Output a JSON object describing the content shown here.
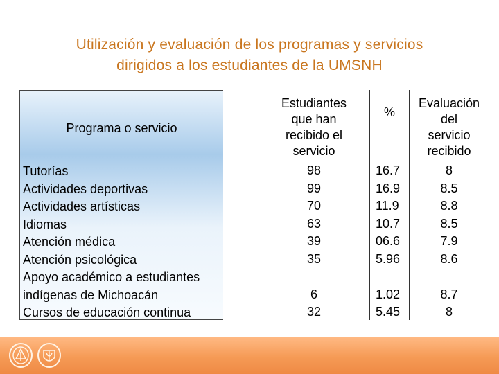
{
  "title": {
    "line1": "Utilización y evaluación de los programas y servicios",
    "line2": "dirigidos a los estudiantes de la UMSNH"
  },
  "headers": {
    "program": "Programa o servicio",
    "students": [
      "Estudiantes",
      "que han",
      "recibido el",
      "servicio"
    ],
    "percent": "%",
    "evaluation": [
      "Evaluación",
      "del",
      "servicio",
      "recibido"
    ]
  },
  "programs": [
    "Tutorías",
    "Actividades deportivas",
    "Actividades artísticas",
    "Idiomas",
    "Atención médica",
    "Atención psicológica",
    "Apoyo académico a estudiantes",
    "indígenas de Michoacán",
    "Cursos de educación continua"
  ],
  "students_values": [
    "98",
    "99",
    "70",
    "63",
    "39",
    "35",
    "6",
    "32"
  ],
  "percent_values": [
    "16.7",
    "16.9",
    "11.9",
    "10.7",
    "06.6",
    "5.96",
    "1.02",
    "5.45"
  ],
  "evaluation_values": [
    "8",
    "8.5",
    "8.8",
    "8.5",
    "7.9",
    "8.6",
    "8.7",
    "8"
  ],
  "colors": {
    "title": "#c9761f",
    "footer": "#f59a55",
    "header_fill": "#a8cbea"
  },
  "icons": [
    "university-seal-icon",
    "university-crest-icon"
  ]
}
